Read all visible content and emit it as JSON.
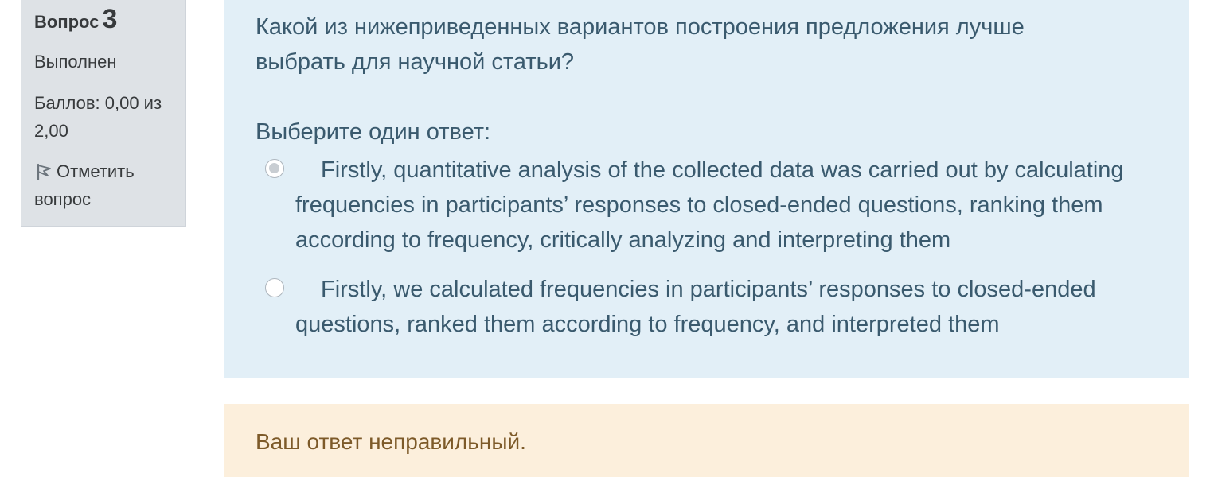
{
  "info": {
    "question_word": "Вопрос",
    "question_number": "3",
    "state": "Выполнен",
    "grade": "Баллов: 0,00 из 2,00",
    "flag_label": "Отметить вопрос",
    "flag_icon": "flag-icon"
  },
  "question": {
    "text": "Какой из нижеприведенных вариантов построения предложения лучше выбрать для научной статьи?",
    "prompt": "Выберите один ответ:",
    "options": [
      {
        "label": "Firstly, quantitative analysis of the collected data was carried out by calculating frequencies in participants’ responses to closed-ended questions, ranking them according to frequency, critically analyzing and interpreting them",
        "selected": true
      },
      {
        "label": "Firstly, we calculated frequencies in participants’ responses to closed-ended questions, ranked them according to frequency, and interpreted them",
        "selected": false
      }
    ]
  },
  "feedback": {
    "text": "Ваш ответ неправильный."
  },
  "colors": {
    "info_bg": "#dee2e6",
    "question_bg": "#e2eff7",
    "question_text": "#3a5a6e",
    "feedback_bg": "#fcefdc",
    "feedback_text": "#7d5a29"
  }
}
